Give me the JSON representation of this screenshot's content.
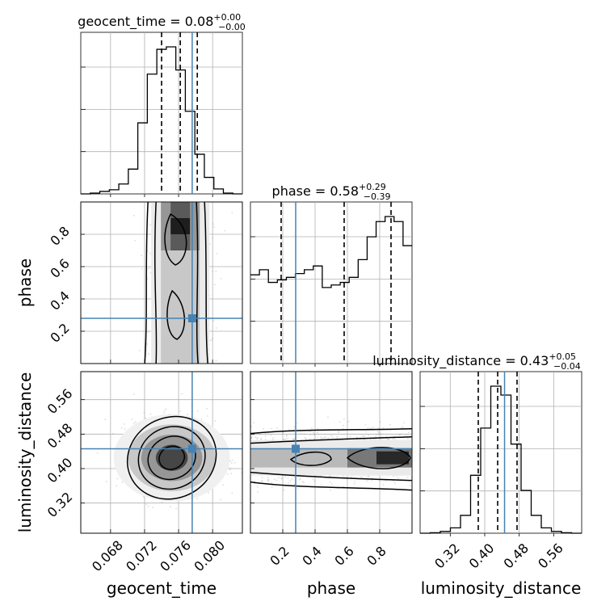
{
  "chart_data": {
    "type": "corner",
    "parameters": [
      "geocent_time",
      "phase",
      "luminosity_distance"
    ],
    "truths": {
      "geocent_time": 0.0776,
      "phase": 0.28,
      "luminosity_distance": 0.446
    },
    "titles": [
      {
        "param": "geocent_time",
        "label": "geocent_time = 0.08",
        "plus": "+0.00",
        "minus": "−0.00"
      },
      {
        "param": "phase",
        "label": "phase = 0.58",
        "plus": "+0.29",
        "minus": "−0.39"
      },
      {
        "param": "luminosity_distance",
        "label": "luminosity_distance = 0.43",
        "plus": "+0.05",
        "minus": "−0.04"
      }
    ],
    "axes": {
      "geocent_time": {
        "range": [
          0.0645,
          0.0835
        ],
        "ticks": [
          "0.068",
          "0.072",
          "0.076",
          "0.080"
        ],
        "tick_values": [
          0.068,
          0.072,
          0.076,
          0.08
        ]
      },
      "phase": {
        "range": [
          0.0,
          1.0
        ],
        "ticks": [
          "0.2",
          "0.4",
          "0.6",
          "0.8"
        ],
        "tick_values": [
          0.2,
          0.4,
          0.6,
          0.8
        ]
      },
      "luminosity_distance": {
        "range": [
          0.25,
          0.625
        ],
        "ticks": [
          "0.32",
          "0.40",
          "0.48",
          "0.56"
        ],
        "tick_values": [
          0.32,
          0.4,
          0.48,
          0.56
        ]
      }
    },
    "histograms": {
      "geocent_time": {
        "range": [
          0.0645,
          0.0835
        ],
        "counts": [
          0,
          1,
          3,
          5,
          12,
          30,
          86,
          145,
          175,
          178,
          150,
          100,
          48,
          20,
          6,
          1,
          0
        ],
        "quantiles": [
          0.074,
          0.0762,
          0.0782
        ]
      },
      "phase": {
        "range": [
          0.0,
          1.0
        ],
        "counts": [
          0.7,
          0.74,
          0.64,
          0.66,
          0.68,
          0.71,
          0.74,
          0.77,
          0.6,
          0.62,
          0.64,
          0.68,
          0.82,
          1.0,
          1.12,
          1.16,
          1.12,
          0.93
        ],
        "quantiles": [
          0.19,
          0.58,
          0.87
        ]
      },
      "luminosity_distance": {
        "range": [
          0.25,
          0.625
        ],
        "counts": [
          0,
          0.5,
          2,
          6,
          20,
          65,
          118,
          165,
          155,
          100,
          48,
          20,
          6,
          2,
          0.5,
          0
        ],
        "quantiles": [
          0.385,
          0.43,
          0.475
        ]
      }
    },
    "grid": true
  }
}
